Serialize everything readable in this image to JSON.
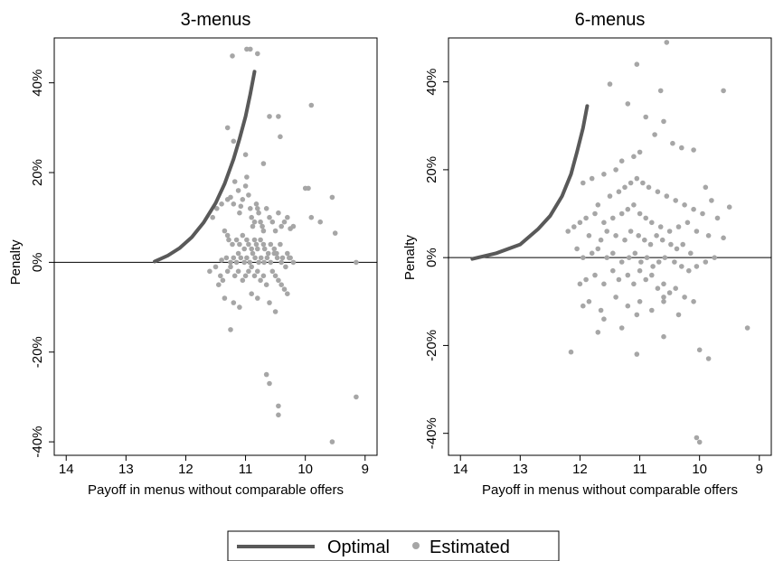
{
  "colors": {
    "optimal": "#595959",
    "estimated": "#a6a6a6",
    "axis": "#000000"
  },
  "legend": {
    "placement": "bottom-center",
    "items": [
      {
        "label": "Optimal",
        "marker": "line"
      },
      {
        "label": "Estimated",
        "marker": "dot"
      }
    ]
  },
  "chart_data": [
    {
      "type": "scatter",
      "title": "3-menus",
      "xlabel": "Payoff in menus without comparable offers",
      "ylabel": "Penalty",
      "xlim": [
        14.2,
        8.8
      ],
      "ylim": [
        -43,
        50
      ],
      "x_reversed": true,
      "xticks": [
        14,
        13,
        12,
        11,
        10,
        9
      ],
      "yticks": [
        -40,
        -20,
        0,
        20,
        40
      ],
      "ytick_labels": [
        "-40%",
        "-20%",
        "0%",
        "20%",
        "40%"
      ],
      "reference_line_y": 0,
      "series": [
        {
          "name": "Optimal",
          "kind": "line",
          "x": [
            12.52,
            12.3,
            12.1,
            11.9,
            11.7,
            11.5,
            11.35,
            11.2,
            11.1,
            11.0,
            10.92,
            10.85
          ],
          "y": [
            0.2,
            1.5,
            3.2,
            5.6,
            8.9,
            13.2,
            17.5,
            23.0,
            27.5,
            32.5,
            37.5,
            42.5
          ]
        },
        {
          "name": "Estimated",
          "kind": "scatter",
          "x": [
            11.22,
            10.98,
            10.92,
            10.8,
            10.6,
            10.45,
            10.42,
            9.9,
            11.55,
            11.48,
            11.4,
            11.3,
            11.25,
            11.2,
            11.18,
            11.12,
            11.1,
            11.08,
            11.05,
            11.0,
            10.98,
            10.95,
            10.92,
            10.9,
            10.88,
            10.85,
            10.82,
            10.8,
            10.78,
            10.75,
            10.72,
            10.7,
            10.65,
            10.6,
            10.55,
            10.5,
            10.45,
            10.4,
            10.35,
            10.3,
            10.25,
            10.2,
            10.0,
            9.95,
            9.9,
            9.75,
            9.55,
            9.5,
            9.15,
            11.35,
            11.3,
            11.28,
            11.22,
            11.15,
            11.1,
            11.05,
            11.02,
            10.98,
            10.95,
            10.9,
            10.85,
            10.82,
            10.8,
            10.75,
            10.7,
            10.68,
            10.62,
            10.58,
            10.52,
            10.48,
            10.42,
            10.38,
            10.3,
            10.25,
            11.4,
            11.32,
            11.25,
            11.2,
            11.15,
            11.12,
            11.08,
            11.02,
            10.98,
            10.93,
            10.88,
            10.84,
            10.78,
            10.74,
            10.69,
            10.64,
            10.58,
            10.52,
            10.47,
            10.4,
            10.33,
            10.27,
            10.2,
            11.6,
            11.5,
            11.42,
            11.38,
            11.3,
            11.25,
            11.18,
            11.12,
            11.05,
            11.0,
            10.95,
            10.9,
            10.85,
            10.8,
            10.75,
            10.7,
            10.65,
            10.55,
            10.5,
            10.45,
            10.4,
            10.35,
            10.3,
            11.45,
            11.35,
            11.2,
            11.1,
            10.9,
            10.8,
            10.6,
            10.5,
            11.25,
            10.65,
            10.6,
            10.45,
            10.45,
            9.55,
            9.15,
            11.3,
            11.2,
            11.0,
            10.7
          ],
          "y": [
            46,
            47.5,
            47.5,
            46.5,
            32.5,
            32.5,
            28,
            35,
            10,
            12,
            13,
            14,
            14.5,
            13,
            18,
            16,
            11,
            12.5,
            14,
            17,
            19,
            15,
            12,
            10,
            8,
            9,
            13,
            12,
            11,
            9,
            8,
            7,
            12,
            10,
            9,
            7,
            11,
            8,
            9,
            10,
            7.5,
            8,
            16.5,
            16.5,
            10,
            9,
            14.5,
            6.5,
            0,
            7,
            6,
            5,
            4,
            5,
            4,
            6,
            3,
            5,
            4,
            3,
            5,
            4,
            3,
            5,
            4,
            3,
            2,
            4,
            3,
            2,
            4,
            1,
            2,
            1,
            0.5,
            1,
            0,
            1,
            0,
            2,
            1,
            0,
            1,
            0,
            2,
            1,
            0,
            1,
            0,
            1,
            0,
            2,
            1,
            0,
            -1,
            1,
            0,
            -2,
            -1,
            -3,
            -4,
            -2,
            -1,
            -3,
            -2,
            -4,
            -3,
            -2,
            -1,
            -3,
            -2,
            -4,
            -3,
            -5,
            -2,
            -3,
            -4,
            -5,
            -6,
            -7,
            -5,
            -8,
            -9,
            -10,
            -7,
            -8,
            -9,
            -11,
            -15,
            -25,
            -27,
            -32,
            -34,
            -40,
            -30,
            30,
            27,
            24,
            22
          ]
        }
      ]
    },
    {
      "type": "scatter",
      "title": "6-menus",
      "xlabel": "Payoff in menus without comparable offers",
      "ylabel": "Penalty",
      "xlim": [
        14.2,
        8.8
      ],
      "ylim": [
        -45,
        50
      ],
      "x_reversed": true,
      "xticks": [
        14,
        13,
        12,
        11,
        10,
        9
      ],
      "yticks": [
        -40,
        -20,
        0,
        20,
        40
      ],
      "ytick_labels": [
        "-40%",
        "-20%",
        "0%",
        "20%",
        "40%"
      ],
      "reference_line_y": 0,
      "series": [
        {
          "name": "Optimal",
          "kind": "line",
          "x": [
            13.8,
            13.4,
            13.0,
            12.7,
            12.5,
            12.3,
            12.15,
            12.05,
            11.95,
            11.88
          ],
          "y": [
            -0.3,
            1.0,
            3.0,
            6.5,
            9.5,
            14.0,
            19.0,
            24.0,
            29.5,
            34.5
          ],
          "_comment": ""
        },
        {
          "name": "Estimated",
          "kind": "scatter",
          "x": [
            10.55,
            11.05,
            11.5,
            10.65,
            9.6,
            11.2,
            10.9,
            10.6,
            10.75,
            10.45,
            10.3,
            11.0,
            11.1,
            11.3,
            11.4,
            11.6,
            11.8,
            11.95,
            10.1,
            9.9,
            9.5,
            9.8,
            12.0,
            12.1,
            12.2,
            11.7,
            11.5,
            11.35,
            11.25,
            11.15,
            11.05,
            10.95,
            10.85,
            10.7,
            10.55,
            10.4,
            10.25,
            10.1,
            9.95,
            9.7,
            9.6,
            9.2,
            11.9,
            11.75,
            11.6,
            11.45,
            11.3,
            11.2,
            11.1,
            11.0,
            10.9,
            10.8,
            10.65,
            10.5,
            10.35,
            10.2,
            10.05,
            9.85,
            11.85,
            11.65,
            11.55,
            11.4,
            11.25,
            11.15,
            11.02,
            10.92,
            10.82,
            10.72,
            10.62,
            10.48,
            10.38,
            10.28,
            10.15,
            12.05,
            11.95,
            11.8,
            11.7,
            11.55,
            11.45,
            11.3,
            11.18,
            11.08,
            10.98,
            10.88,
            10.78,
            10.68,
            10.58,
            10.42,
            10.3,
            10.18,
            10.05,
            9.9,
            9.75,
            12.0,
            11.9,
            11.75,
            11.6,
            11.45,
            11.35,
            11.2,
            11.1,
            11.0,
            10.9,
            10.8,
            10.7,
            10.6,
            10.5,
            10.4,
            10.25,
            10.1,
            11.85,
            11.65,
            11.4,
            11.2,
            11.0,
            10.8,
            10.6,
            10.35,
            11.95,
            11.6,
            11.3,
            11.05,
            10.6,
            10.0,
            9.85,
            12.15,
            11.7,
            11.05,
            10.6,
            10.05,
            10.0
          ],
          "y": [
            49,
            44,
            39.5,
            38,
            38,
            35,
            32,
            31,
            28,
            26,
            25,
            24,
            23,
            22,
            20,
            19,
            18,
            17,
            24.5,
            16,
            11.5,
            13,
            8,
            7,
            6,
            12,
            14,
            15,
            16,
            17,
            18,
            17,
            16,
            15,
            14,
            13,
            12,
            11,
            10,
            9,
            4.5,
            -16,
            9,
            10,
            8,
            9,
            10,
            11,
            12,
            10,
            9,
            8,
            7,
            6,
            7,
            8,
            6,
            5,
            5,
            4,
            6,
            5,
            4,
            6,
            5,
            4,
            3,
            5,
            4,
            3,
            2,
            3,
            1,
            2,
            0,
            1,
            2,
            0,
            1,
            -1,
            0,
            1,
            -1,
            0,
            -2,
            -1,
            0,
            -1,
            -2,
            -3,
            -2,
            -1,
            0,
            -6,
            -5,
            -4,
            -6,
            -3,
            -5,
            -4,
            -6,
            -3,
            -5,
            -4,
            -7,
            -6,
            -8,
            -7,
            -9,
            -10,
            -10,
            -12,
            -9,
            -11,
            -10,
            -12,
            -9,
            -13,
            -11,
            -14,
            -16,
            -13,
            -18,
            -21,
            -23,
            -21.5,
            -17,
            -22,
            -10,
            -41,
            -42
          ]
        }
      ]
    }
  ]
}
